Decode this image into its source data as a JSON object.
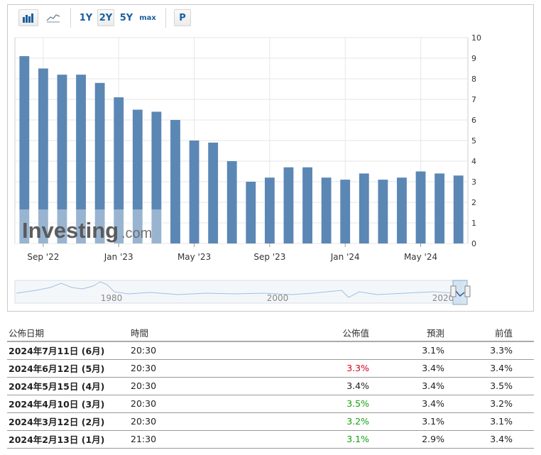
{
  "toolbar": {
    "bar_chart_icon": "bar-chart-icon",
    "line_chart_icon": "line-chart-icon",
    "range_1y": "1Y",
    "range_2y": "2Y",
    "range_5y": "5Y",
    "range_max": "max",
    "print_label": "P",
    "selected_range": "2Y"
  },
  "watermark": {
    "brand": "Investing",
    "suffix": ".com"
  },
  "chart_data": {
    "type": "bar",
    "values": [
      9.1,
      8.5,
      8.2,
      8.2,
      7.8,
      7.1,
      6.5,
      6.4,
      6.0,
      5.0,
      4.9,
      4.0,
      3.0,
      3.2,
      3.7,
      3.7,
      3.2,
      3.1,
      3.4,
      3.1,
      3.2,
      3.5,
      3.4,
      3.3
    ],
    "x_tick_labels": [
      "Sep '22",
      "Jan '23",
      "May '23",
      "Sep '23",
      "Jan '24",
      "May '24"
    ],
    "x_tick_bar_index": [
      1,
      5,
      9,
      13,
      17,
      21
    ],
    "y_ticks": [
      0,
      1,
      2,
      3,
      4,
      5,
      6,
      7,
      8,
      9,
      10
    ],
    "ylim": [
      0,
      10
    ],
    "grid": true,
    "bar_color": "#5b87b4",
    "navigator": {
      "labels": [
        "1980",
        "2000",
        "2020"
      ]
    }
  },
  "table": {
    "headers": {
      "date": "公佈日期",
      "time": "時間",
      "actual": "公佈值",
      "forecast": "預測",
      "previous": "前值"
    },
    "rows": [
      {
        "date": "2024年7月11日 (6月)",
        "time": "20:30",
        "actual": "",
        "actual_color": "",
        "forecast": "3.1%",
        "previous": "3.3%"
      },
      {
        "date": "2024年6月12日 (5月)",
        "time": "20:30",
        "actual": "3.3%",
        "actual_color": "red",
        "forecast": "3.4%",
        "previous": "3.4%"
      },
      {
        "date": "2024年5月15日 (4月)",
        "time": "20:30",
        "actual": "3.4%",
        "actual_color": "",
        "forecast": "3.4%",
        "previous": "3.5%"
      },
      {
        "date": "2024年4月10日 (3月)",
        "time": "20:30",
        "actual": "3.5%",
        "actual_color": "green",
        "forecast": "3.4%",
        "previous": "3.2%"
      },
      {
        "date": "2024年3月12日 (2月)",
        "time": "20:30",
        "actual": "3.2%",
        "actual_color": "green",
        "forecast": "3.1%",
        "previous": "3.1%"
      },
      {
        "date": "2024年2月13日 (1月)",
        "time": "21:30",
        "actual": "3.1%",
        "actual_color": "green",
        "forecast": "2.9%",
        "previous": "3.4%"
      }
    ]
  }
}
